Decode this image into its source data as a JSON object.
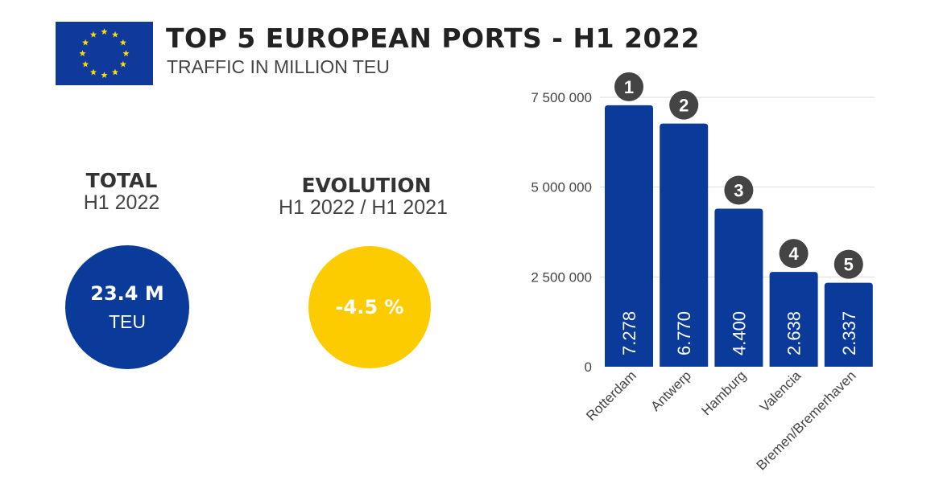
{
  "header": {
    "title": "TOP 5 EUROPEAN PORTS - H1 2022",
    "subtitle": "TRAFFIC IN MILLION TEU",
    "flag": "eu-flag"
  },
  "kpis": [
    {
      "heading": "TOTAL",
      "sub": "H1 2022",
      "value": "23.4 M",
      "unit": "TEU",
      "color": "#0a3a9a"
    },
    {
      "heading": "EVOLUTION",
      "sub": "H1 2022 / H1 2021",
      "value": "-4.5 %",
      "unit": "",
      "color": "#fccc00"
    }
  ],
  "chart_data": {
    "type": "bar",
    "categories": [
      "Rotterdam",
      "Antwerp",
      "Hamburg",
      "Valencia",
      "Bremen/Bremerhaven"
    ],
    "values": [
      7278000,
      6770000,
      4400000,
      2638000,
      2337000
    ],
    "data_labels": [
      "7.278",
      "6.770",
      "4.400",
      "2.638",
      "2.337"
    ],
    "rank_labels": [
      "1",
      "2",
      "3",
      "4",
      "5"
    ],
    "ylim": [
      0,
      7500000
    ],
    "yticks": [
      0,
      2500000,
      5000000,
      7500000
    ],
    "ytick_labels": [
      "0",
      "2 500 000",
      "5 000 000",
      "7 500 000"
    ],
    "grid": true,
    "bar_color": "#0a3a9a",
    "rank_badge_color": "#444444"
  }
}
